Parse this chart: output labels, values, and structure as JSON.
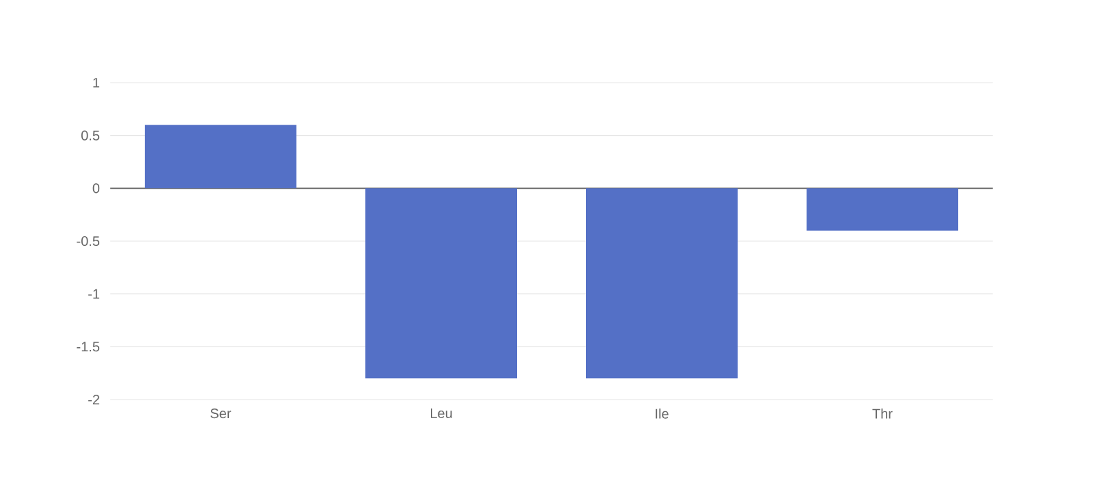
{
  "chart_data": {
    "type": "bar",
    "categories": [
      "Ser",
      "Leu",
      "Ile",
      "Thr"
    ],
    "values": [
      0.6,
      -1.8,
      -1.8,
      -0.4
    ],
    "color": "#5470c6",
    "ylim": [
      -2,
      1
    ],
    "yticks": [
      -2,
      -1.5,
      -1,
      -0.5,
      0,
      0.5,
      1
    ],
    "grid": "y"
  }
}
